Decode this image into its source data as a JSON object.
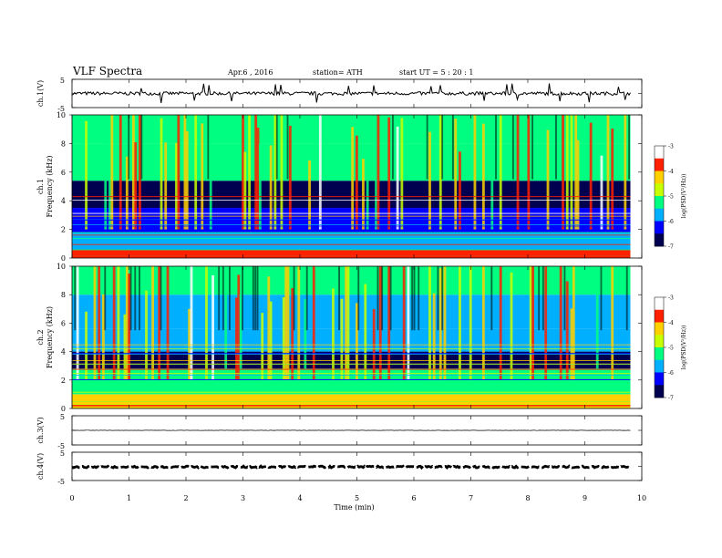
{
  "header": {
    "title": "VLF  Spectra",
    "date": "Apr.6  , 2016",
    "station": "station= ATH",
    "start": "start  UT  =   5  : 20 : 1"
  },
  "chart_data": [
    {
      "type": "line",
      "name": "ch1-waveform",
      "ylabel": "ch.1(V)",
      "ylim": [
        -5,
        5
      ],
      "yticks": [
        "5",
        "-5"
      ],
      "baseline": 0.0,
      "noise_amplitude": 0.6,
      "spike_count": 14
    },
    {
      "type": "heatmap",
      "name": "ch1-spectrogram",
      "ylabel": "ch.1\nFrequency  (kHz)",
      "ylabel_lines": [
        "ch.1",
        "Frequency  (kHz)"
      ],
      "xlim": [
        0,
        9.8
      ],
      "ylim": [
        0,
        10
      ],
      "yticks": [
        "0",
        "2",
        "4",
        "6",
        "8",
        "10"
      ],
      "colorbar": {
        "label": "log(PSD(V²/Hz))",
        "range": [
          -7,
          -3
        ],
        "ticks": [
          "-3",
          "-4",
          "-5",
          "-6",
          "-7"
        ],
        "colors": [
          "#000050",
          "#0000ff",
          "#00b0ff",
          "#00ff80",
          "#c8ff00",
          "#ffd000",
          "#ff2000",
          "#ffffff"
        ]
      },
      "bands": [
        {
          "from": 0,
          "to": 0.6,
          "level": -3.8
        },
        {
          "from": 0.6,
          "to": 1.8,
          "level": -5.6
        },
        {
          "from": 1.8,
          "to": 3.5,
          "level": -6.1
        },
        {
          "from": 3.5,
          "to": 5.4,
          "level": -6.6
        },
        {
          "from": 5.4,
          "to": 8.0,
          "level": -5.3
        },
        {
          "from": 8.0,
          "to": 10,
          "level": -5.1
        }
      ]
    },
    {
      "type": "heatmap",
      "name": "ch2-spectrogram",
      "ylabel": "ch.2\nFrequency  (kHz)",
      "ylabel_lines": [
        "ch.2",
        "Frequency  (kHz)"
      ],
      "xlim": [
        0,
        9.8
      ],
      "ylim": [
        0,
        10
      ],
      "yticks": [
        "0",
        "2",
        "4",
        "6",
        "8",
        "10"
      ],
      "colorbar": {
        "label": "log(PSD(V²/Hz))",
        "range": [
          -7,
          -3
        ],
        "ticks": [
          "-3",
          "-4",
          "-5",
          "-6",
          "-7"
        ],
        "colors": [
          "#000050",
          "#0000ff",
          "#00b0ff",
          "#00ff80",
          "#c8ff00",
          "#ffd000",
          "#ff2000",
          "#ffffff"
        ]
      },
      "bands": [
        {
          "from": 0,
          "to": 1.0,
          "level": -4.2
        },
        {
          "from": 1.0,
          "to": 2.8,
          "level": -5.4
        },
        {
          "from": 2.8,
          "to": 4.0,
          "level": -6.5
        },
        {
          "from": 4.0,
          "to": 5.6,
          "level": -5.9
        },
        {
          "from": 5.6,
          "to": 8.0,
          "level": -5.5
        },
        {
          "from": 8.0,
          "to": 10,
          "level": -5.2
        }
      ]
    },
    {
      "type": "line",
      "name": "ch3-waveform",
      "ylabel": "ch.3(V)",
      "ylim": [
        -5,
        5
      ],
      "yticks": [
        "5",
        "-5"
      ],
      "baseline": 0.0,
      "noise_amplitude": 0.05
    },
    {
      "type": "line",
      "name": "ch4-waveform",
      "ylabel": "ch.4(V)",
      "ylim": [
        -5,
        5
      ],
      "yticks": [
        "5",
        "-5"
      ],
      "baseline": -0.2,
      "noise_amplitude": 0.3
    }
  ],
  "x_axis": {
    "label": "Time  (min)",
    "range": [
      0,
      10
    ],
    "ticks": [
      "0",
      "1",
      "2",
      "3",
      "4",
      "5",
      "6",
      "7",
      "8",
      "9",
      "10"
    ]
  }
}
